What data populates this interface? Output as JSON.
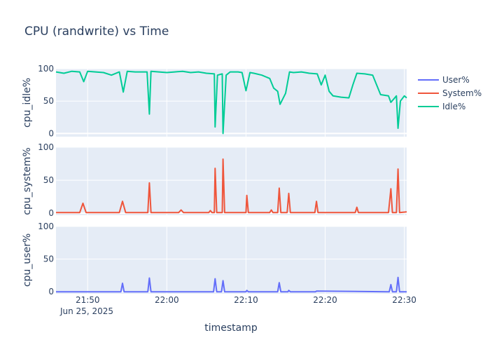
{
  "chart_data": {
    "type": "line",
    "title": "CPU (randwrite) vs Time",
    "xlabel": "timestamp",
    "x_date_label": "Jun 25, 2025",
    "x_ticks": [
      "21:50",
      "22:00",
      "22:10",
      "22:20",
      "22:30"
    ],
    "x_range": [
      "21:46",
      "22:30"
    ],
    "grid": true,
    "legend_position": "top-right",
    "legend": [
      {
        "name": "User%",
        "color": "#636efa"
      },
      {
        "name": "System%",
        "color": "#ef553b"
      },
      {
        "name": "Idle%",
        "color": "#00cc96"
      }
    ],
    "panels": [
      {
        "ylabel": "cpu_idle%",
        "series": "Idle%",
        "color": "#00cc96",
        "ylim": [
          -5,
          100
        ],
        "y_ticks": [
          "0",
          "50",
          "100"
        ],
        "points": [
          [
            "21:46",
            95
          ],
          [
            "21:47",
            93
          ],
          [
            "21:48",
            96
          ],
          [
            "21:49",
            95
          ],
          [
            "21:49.5",
            80
          ],
          [
            "21:50",
            96
          ],
          [
            "21:51",
            95
          ],
          [
            "21:52",
            94
          ],
          [
            "21:53",
            90
          ],
          [
            "21:54",
            95
          ],
          [
            "21:54.5",
            64
          ],
          [
            "21:55",
            96
          ],
          [
            "21:56",
            95
          ],
          [
            "21:57",
            95
          ],
          [
            "21:57.5",
            95
          ],
          [
            "21:57.8",
            30
          ],
          [
            "21:58",
            96
          ],
          [
            "21:59",
            95
          ],
          [
            "22:00",
            94
          ],
          [
            "22:01",
            95
          ],
          [
            "22:02",
            96
          ],
          [
            "22:03",
            94
          ],
          [
            "22:04",
            95
          ],
          [
            "22:05",
            93
          ],
          [
            "22:06",
            92
          ],
          [
            "22:06.1",
            10
          ],
          [
            "22:06.4",
            90
          ],
          [
            "22:07",
            92
          ],
          [
            "22:07.1",
            0
          ],
          [
            "22:07.5",
            90
          ],
          [
            "22:08",
            95
          ],
          [
            "22:09",
            95
          ],
          [
            "22:09.5",
            94
          ],
          [
            "22:10",
            66
          ],
          [
            "22:10.5",
            94
          ],
          [
            "22:11",
            93
          ],
          [
            "22:12",
            90
          ],
          [
            "22:13",
            85
          ],
          [
            "22:13.5",
            70
          ],
          [
            "22:14",
            65
          ],
          [
            "22:14.3",
            45
          ],
          [
            "22:15",
            62
          ],
          [
            "22:15.5",
            95
          ],
          [
            "22:16",
            94
          ],
          [
            "22:17",
            95
          ],
          [
            "22:18",
            93
          ],
          [
            "22:19",
            92
          ],
          [
            "22:19.5",
            75
          ],
          [
            "22:20",
            90
          ],
          [
            "22:20.5",
            65
          ],
          [
            "22:21",
            58
          ],
          [
            "22:22",
            56
          ],
          [
            "22:23",
            55
          ],
          [
            "22:23.5",
            75
          ],
          [
            "22:24",
            93
          ],
          [
            "22:25",
            92
          ],
          [
            "22:26",
            90
          ],
          [
            "22:27",
            60
          ],
          [
            "22:28",
            58
          ],
          [
            "22:28.3",
            48
          ],
          [
            "22:29",
            58
          ],
          [
            "22:29.2",
            8
          ],
          [
            "22:29.5",
            50
          ],
          [
            "22:30",
            58
          ],
          [
            "22:30.3",
            55
          ]
        ]
      },
      {
        "ylabel": "cpu_system%",
        "series": "System%",
        "color": "#ef553b",
        "ylim": [
          -3,
          100
        ],
        "y_ticks": [
          "0",
          "50",
          "100"
        ],
        "points": [
          [
            "21:46",
            1
          ],
          [
            "21:49",
            1
          ],
          [
            "21:49.4",
            15
          ],
          [
            "21:49.8",
            1
          ],
          [
            "21:54",
            1
          ],
          [
            "21:54.4",
            18
          ],
          [
            "21:54.8",
            1
          ],
          [
            "21:57.6",
            1
          ],
          [
            "21:57.8",
            46
          ],
          [
            "21:58",
            1
          ],
          [
            "22:01.5",
            1
          ],
          [
            "22:01.8",
            5
          ],
          [
            "22:02.1",
            1
          ],
          [
            "22:05.3",
            1
          ],
          [
            "22:05.5",
            4
          ],
          [
            "22:05.7",
            1
          ],
          [
            "22:06",
            1
          ],
          [
            "22:06.1",
            68
          ],
          [
            "22:06.3",
            1
          ],
          [
            "22:07",
            1
          ],
          [
            "22:07.1",
            82
          ],
          [
            "22:07.3",
            1
          ],
          [
            "22:10",
            1
          ],
          [
            "22:10.1",
            27
          ],
          [
            "22:10.3",
            1
          ],
          [
            "22:13",
            1
          ],
          [
            "22:13.2",
            5
          ],
          [
            "22:13.4",
            1
          ],
          [
            "22:14",
            1
          ],
          [
            "22:14.2",
            38
          ],
          [
            "22:14.4",
            1
          ],
          [
            "22:15.2",
            1
          ],
          [
            "22:15.4",
            30
          ],
          [
            "22:15.6",
            1
          ],
          [
            "22:18.7",
            1
          ],
          [
            "22:18.9",
            18
          ],
          [
            "22:19.1",
            1
          ],
          [
            "22:23.8",
            1
          ],
          [
            "22:24",
            9
          ],
          [
            "22:24.2",
            1
          ],
          [
            "22:28",
            1
          ],
          [
            "22:28.3",
            37
          ],
          [
            "22:28.5",
            1
          ],
          [
            "22:29",
            1
          ],
          [
            "22:29.2",
            67
          ],
          [
            "22:29.4",
            1
          ],
          [
            "22:30.3",
            2
          ]
        ]
      },
      {
        "ylabel": "cpu_user%",
        "series": "User%",
        "color": "#636efa",
        "ylim": [
          -3,
          100
        ],
        "y_ticks": [
          "0",
          "50",
          "100"
        ],
        "points": [
          [
            "21:46",
            0
          ],
          [
            "21:54.2",
            0
          ],
          [
            "21:54.4",
            13
          ],
          [
            "21:54.6",
            0
          ],
          [
            "21:57.6",
            0
          ],
          [
            "21:57.8",
            21
          ],
          [
            "21:58",
            0
          ],
          [
            "22:05.9",
            0
          ],
          [
            "22:06.1",
            20
          ],
          [
            "22:06.3",
            0
          ],
          [
            "22:06.9",
            0
          ],
          [
            "22:07.1",
            17
          ],
          [
            "22:07.3",
            0
          ],
          [
            "22:10",
            0
          ],
          [
            "22:10.1",
            2
          ],
          [
            "22:10.3",
            0
          ],
          [
            "22:14",
            0
          ],
          [
            "22:14.2",
            14
          ],
          [
            "22:14.4",
            0
          ],
          [
            "22:15.3",
            0
          ],
          [
            "22:15.4",
            2
          ],
          [
            "22:15.6",
            0
          ],
          [
            "22:18.8",
            0
          ],
          [
            "22:18.9",
            1
          ],
          [
            "22:28.1",
            0
          ],
          [
            "22:28.3",
            11
          ],
          [
            "22:28.5",
            0
          ],
          [
            "22:29",
            0
          ],
          [
            "22:29.2",
            22
          ],
          [
            "22:29.4",
            0
          ],
          [
            "22:30.3",
            0
          ]
        ]
      }
    ]
  }
}
